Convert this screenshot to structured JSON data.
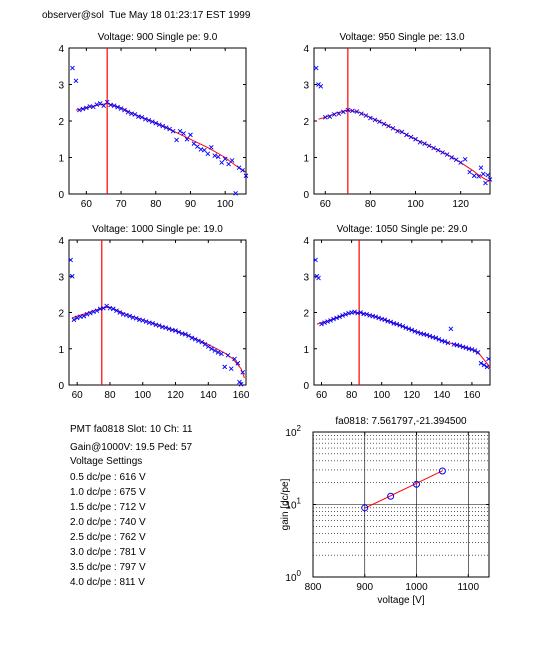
{
  "header": "observer@sol  Tue May 18 01:23:17 EST 1999",
  "info": {
    "line1": "PMT fa0818 Slot: 10 Ch: 11",
    "line2": "Gain@1000V: 19.5 Ped: 57",
    "line3": "Voltage Settings",
    "settings": [
      "0.5 dc/pe : 616 V",
      "1.0 dc/pe : 675 V",
      "1.5 dc/pe : 712 V",
      "2.0 dc/pe : 740 V",
      "2.5 dc/pe : 762 V",
      "3.0 dc/pe : 781 V",
      "3.5 dc/pe : 797 V",
      "4.0 dc/pe : 811 V"
    ]
  },
  "colors": {
    "points": "#0000ff",
    "fit": "#ff0000",
    "marker": "#ff0000"
  },
  "chart_data": [
    {
      "type": "scatter",
      "title": "Voltage: 900 Single pe: 9.0",
      "xlim": [
        55,
        106
      ],
      "ylim": [
        0,
        4
      ],
      "xticks": [
        60,
        70,
        80,
        90,
        100
      ],
      "yticks": [
        0,
        1,
        2,
        3,
        4
      ],
      "peak_line_x": 66,
      "fit": [
        [
          57,
          2.3
        ],
        [
          60,
          2.36
        ],
        [
          63,
          2.43
        ],
        [
          66,
          2.48
        ],
        [
          70,
          2.36
        ],
        [
          75,
          2.14
        ],
        [
          80,
          1.95
        ],
        [
          85,
          1.73
        ],
        [
          90,
          1.5
        ],
        [
          95,
          1.27
        ],
        [
          100,
          1.0
        ],
        [
          103,
          0.78
        ],
        [
          106,
          0.6
        ]
      ],
      "points": [
        [
          56,
          3.45
        ],
        [
          57,
          3.1
        ],
        [
          58,
          2.3
        ],
        [
          59,
          2.33
        ],
        [
          60,
          2.36
        ],
        [
          61,
          2.4
        ],
        [
          62,
          2.39
        ],
        [
          63,
          2.45
        ],
        [
          64,
          2.48
        ],
        [
          65,
          2.42
        ],
        [
          66,
          2.52
        ],
        [
          67,
          2.44
        ],
        [
          68,
          2.42
        ],
        [
          69,
          2.38
        ],
        [
          70,
          2.34
        ],
        [
          71,
          2.3
        ],
        [
          72,
          2.24
        ],
        [
          73,
          2.2
        ],
        [
          74,
          2.18
        ],
        [
          75,
          2.12
        ],
        [
          76,
          2.1
        ],
        [
          77,
          2.05
        ],
        [
          78,
          2.02
        ],
        [
          79,
          1.98
        ],
        [
          80,
          1.94
        ],
        [
          81,
          1.9
        ],
        [
          82,
          1.86
        ],
        [
          83,
          1.82
        ],
        [
          84,
          1.78
        ],
        [
          85,
          1.72
        ],
        [
          86,
          1.48
        ],
        [
          87,
          1.72
        ],
        [
          88,
          1.66
        ],
        [
          89,
          1.5
        ],
        [
          90,
          1.62
        ],
        [
          91,
          1.38
        ],
        [
          92,
          1.3
        ],
        [
          93,
          1.22
        ],
        [
          94,
          1.2
        ],
        [
          95,
          1.1
        ],
        [
          96,
          1.28
        ],
        [
          97,
          1.05
        ],
        [
          98,
          1.02
        ],
        [
          99,
          0.86
        ],
        [
          100,
          0.96
        ],
        [
          101,
          0.82
        ],
        [
          102,
          0.92
        ],
        [
          103,
          0.02
        ],
        [
          104,
          0.72
        ],
        [
          105,
          0.65
        ],
        [
          106,
          0.5
        ]
      ]
    },
    {
      "type": "scatter",
      "title": "Voltage: 950 Single pe: 13.0",
      "xlim": [
        55,
        133
      ],
      "ylim": [
        0,
        4
      ],
      "xticks": [
        60,
        80,
        100,
        120
      ],
      "yticks": [
        0,
        1,
        2,
        3,
        4
      ],
      "peak_line_x": 70,
      "fit": [
        [
          57,
          2.05
        ],
        [
          60,
          2.1
        ],
        [
          65,
          2.22
        ],
        [
          70,
          2.3
        ],
        [
          75,
          2.24
        ],
        [
          80,
          2.1
        ],
        [
          85,
          1.96
        ],
        [
          90,
          1.8
        ],
        [
          95,
          1.66
        ],
        [
          100,
          1.5
        ],
        [
          105,
          1.36
        ],
        [
          110,
          1.2
        ],
        [
          115,
          1.05
        ],
        [
          120,
          0.86
        ],
        [
          125,
          0.66
        ],
        [
          128,
          0.52
        ],
        [
          131,
          0.4
        ],
        [
          133,
          0.35
        ]
      ],
      "points": [
        [
          56,
          3.45
        ],
        [
          57,
          3.0
        ],
        [
          58,
          2.95
        ],
        [
          60,
          2.1
        ],
        [
          62,
          2.12
        ],
        [
          64,
          2.18
        ],
        [
          66,
          2.2
        ],
        [
          68,
          2.25
        ],
        [
          70,
          2.3
        ],
        [
          72,
          2.28
        ],
        [
          74,
          2.26
        ],
        [
          76,
          2.2
        ],
        [
          78,
          2.15
        ],
        [
          80,
          2.08
        ],
        [
          82,
          2.03
        ],
        [
          84,
          1.98
        ],
        [
          86,
          1.92
        ],
        [
          88,
          1.86
        ],
        [
          90,
          1.8
        ],
        [
          92,
          1.72
        ],
        [
          94,
          1.7
        ],
        [
          96,
          1.62
        ],
        [
          98,
          1.56
        ],
        [
          100,
          1.5
        ],
        [
          102,
          1.42
        ],
        [
          104,
          1.38
        ],
        [
          106,
          1.32
        ],
        [
          108,
          1.26
        ],
        [
          110,
          1.2
        ],
        [
          112,
          1.14
        ],
        [
          114,
          1.08
        ],
        [
          116,
          1.0
        ],
        [
          118,
          0.94
        ],
        [
          120,
          0.86
        ],
        [
          122,
          0.95
        ],
        [
          124,
          0.6
        ],
        [
          126,
          0.5
        ],
        [
          128,
          0.48
        ],
        [
          129,
          0.72
        ],
        [
          130,
          0.55
        ],
        [
          131,
          0.3
        ],
        [
          132,
          0.52
        ],
        [
          133,
          0.4
        ]
      ]
    },
    {
      "type": "scatter",
      "title": "Voltage: 1000 Single pe: 19.0",
      "xlim": [
        55,
        163
      ],
      "ylim": [
        0,
        4
      ],
      "xticks": [
        60,
        80,
        100,
        120,
        140,
        160
      ],
      "yticks": [
        0,
        1,
        2,
        3,
        4
      ],
      "peak_line_x": 75,
      "fit": [
        [
          57,
          1.85
        ],
        [
          60,
          1.9
        ],
        [
          65,
          1.97
        ],
        [
          70,
          2.05
        ],
        [
          75,
          2.12
        ],
        [
          80,
          2.15
        ],
        [
          85,
          2.05
        ],
        [
          90,
          1.95
        ],
        [
          100,
          1.8
        ],
        [
          110,
          1.65
        ],
        [
          120,
          1.5
        ],
        [
          130,
          1.32
        ],
        [
          140,
          1.12
        ],
        [
          150,
          0.88
        ],
        [
          155,
          0.72
        ],
        [
          160,
          0.45
        ],
        [
          162,
          0.2
        ]
      ],
      "points": [
        [
          56,
          3.45
        ],
        [
          57,
          3.0
        ],
        [
          58,
          1.8
        ],
        [
          60,
          1.85
        ],
        [
          62,
          1.88
        ],
        [
          64,
          1.9
        ],
        [
          66,
          1.95
        ],
        [
          68,
          1.98
        ],
        [
          70,
          2.02
        ],
        [
          72,
          2.05
        ],
        [
          74,
          2.1
        ],
        [
          76,
          2.12
        ],
        [
          78,
          2.18
        ],
        [
          80,
          2.12
        ],
        [
          82,
          2.1
        ],
        [
          84,
          2.05
        ],
        [
          86,
          2.0
        ],
        [
          88,
          1.95
        ],
        [
          90,
          1.93
        ],
        [
          92,
          1.9
        ],
        [
          94,
          1.86
        ],
        [
          96,
          1.84
        ],
        [
          98,
          1.8
        ],
        [
          100,
          1.78
        ],
        [
          102,
          1.75
        ],
        [
          104,
          1.72
        ],
        [
          106,
          1.7
        ],
        [
          108,
          1.66
        ],
        [
          110,
          1.64
        ],
        [
          112,
          1.6
        ],
        [
          114,
          1.58
        ],
        [
          116,
          1.55
        ],
        [
          118,
          1.52
        ],
        [
          120,
          1.5
        ],
        [
          122,
          1.46
        ],
        [
          124,
          1.42
        ],
        [
          126,
          1.4
        ],
        [
          128,
          1.36
        ],
        [
          130,
          1.3
        ],
        [
          132,
          1.26
        ],
        [
          134,
          1.22
        ],
        [
          136,
          1.18
        ],
        [
          138,
          1.12
        ],
        [
          140,
          1.06
        ],
        [
          142,
          1.0
        ],
        [
          144,
          0.95
        ],
        [
          146,
          0.9
        ],
        [
          148,
          0.86
        ],
        [
          150,
          0.5
        ],
        [
          152,
          0.82
        ],
        [
          154,
          0.45
        ],
        [
          156,
          0.72
        ],
        [
          158,
          0.6
        ],
        [
          159,
          0.08
        ],
        [
          160,
          0.02
        ],
        [
          161,
          0.35
        ]
      ]
    },
    {
      "type": "scatter",
      "title": "Voltage: 1050 Single pe: 29.0",
      "xlim": [
        55,
        172
      ],
      "ylim": [
        0,
        4
      ],
      "xticks": [
        60,
        80,
        100,
        120,
        140,
        160
      ],
      "yticks": [
        0,
        1,
        2,
        3,
        4
      ],
      "peak_line_x": 85,
      "fit": [
        [
          57,
          1.68
        ],
        [
          60,
          1.72
        ],
        [
          65,
          1.78
        ],
        [
          70,
          1.86
        ],
        [
          75,
          1.92
        ],
        [
          80,
          1.98
        ],
        [
          85,
          2.0
        ],
        [
          90,
          1.96
        ],
        [
          100,
          1.84
        ],
        [
          110,
          1.68
        ],
        [
          120,
          1.52
        ],
        [
          130,
          1.38
        ],
        [
          140,
          1.22
        ],
        [
          150,
          1.1
        ],
        [
          160,
          0.98
        ],
        [
          165,
          0.85
        ],
        [
          170,
          0.6
        ],
        [
          172,
          0.45
        ]
      ],
      "points": [
        [
          56,
          3.45
        ],
        [
          57,
          3.0
        ],
        [
          58,
          2.95
        ],
        [
          60,
          1.68
        ],
        [
          62,
          1.72
        ],
        [
          64,
          1.75
        ],
        [
          66,
          1.78
        ],
        [
          68,
          1.82
        ],
        [
          70,
          1.85
        ],
        [
          72,
          1.88
        ],
        [
          74,
          1.92
        ],
        [
          76,
          1.95
        ],
        [
          78,
          1.98
        ],
        [
          80,
          2.0
        ],
        [
          82,
          2.02
        ],
        [
          84,
          1.98
        ],
        [
          86,
          2.0
        ],
        [
          88,
          1.96
        ],
        [
          90,
          1.95
        ],
        [
          92,
          1.92
        ],
        [
          94,
          1.9
        ],
        [
          96,
          1.88
        ],
        [
          98,
          1.85
        ],
        [
          100,
          1.82
        ],
        [
          102,
          1.8
        ],
        [
          104,
          1.76
        ],
        [
          106,
          1.74
        ],
        [
          108,
          1.7
        ],
        [
          110,
          1.68
        ],
        [
          112,
          1.65
        ],
        [
          114,
          1.62
        ],
        [
          116,
          1.58
        ],
        [
          118,
          1.55
        ],
        [
          120,
          1.52
        ],
        [
          122,
          1.48
        ],
        [
          124,
          1.45
        ],
        [
          126,
          1.42
        ],
        [
          128,
          1.4
        ],
        [
          130,
          1.38
        ],
        [
          132,
          1.35
        ],
        [
          134,
          1.32
        ],
        [
          136,
          1.3
        ],
        [
          138,
          1.26
        ],
        [
          140,
          1.22
        ],
        [
          142,
          1.2
        ],
        [
          144,
          1.16
        ],
        [
          146,
          1.55
        ],
        [
          148,
          1.12
        ],
        [
          150,
          1.1
        ],
        [
          152,
          1.08
        ],
        [
          154,
          1.05
        ],
        [
          156,
          1.03
        ],
        [
          158,
          1.0
        ],
        [
          160,
          0.98
        ],
        [
          162,
          0.95
        ],
        [
          164,
          0.9
        ],
        [
          166,
          0.6
        ],
        [
          168,
          0.55
        ],
        [
          170,
          0.5
        ],
        [
          171,
          0.72
        ]
      ]
    },
    {
      "type": "scatter",
      "title": "fa0818: 7.561797,-21.394500",
      "xlabel": "voltage [V]",
      "ylabel": "gain [dc/pe]",
      "xlim": [
        800,
        1140
      ],
      "ylim": [
        1,
        100
      ],
      "yscale": "log",
      "grid": true,
      "xticks": [
        800,
        900,
        1000,
        1100
      ],
      "yticks": [
        1,
        10,
        100
      ],
      "ytick_labels": [
        "10^0",
        "10^1",
        "10^2"
      ],
      "points": [
        [
          900,
          9.0
        ],
        [
          950,
          13.0
        ],
        [
          1000,
          19.0
        ],
        [
          1050,
          29.0
        ]
      ],
      "fit": [
        [
          900,
          8.9
        ],
        [
          1050,
          29.2
        ]
      ]
    }
  ]
}
